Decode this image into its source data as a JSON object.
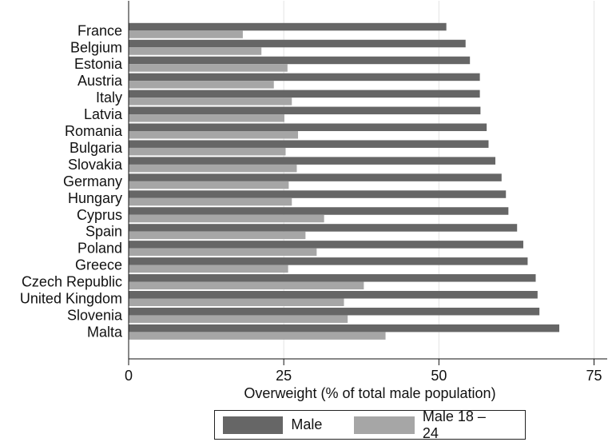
{
  "chart_data": {
    "type": "bar",
    "orientation": "horizontal",
    "categories": [
      "France",
      "Belgium",
      "Estonia",
      "Austria",
      "Italy",
      "Latvia",
      "Romania",
      "Bulgaria",
      "Slovakia",
      "Germany",
      "Hungary",
      "Cyprus",
      "Spain",
      "Poland",
      "Greece",
      "Czech Republic",
      "United Kingdom",
      "Slovenia",
      "Malta"
    ],
    "series": [
      {
        "name": "Male",
        "color": "#666666",
        "values": [
          51.2,
          54.3,
          55.0,
          56.6,
          56.6,
          56.7,
          57.7,
          58.0,
          59.1,
          60.1,
          60.8,
          61.2,
          62.6,
          63.6,
          64.3,
          65.6,
          65.9,
          66.2,
          69.4
        ]
      },
      {
        "name": "Male 18 – 24",
        "color": "#a6a6a6",
        "values": [
          18.4,
          21.4,
          25.6,
          23.4,
          26.3,
          25.1,
          27.3,
          25.3,
          27.1,
          25.8,
          26.3,
          31.5,
          28.5,
          30.3,
          25.7,
          37.9,
          34.7,
          35.3,
          41.4
        ]
      }
    ],
    "xlabel": "Overweight (% of total male population)",
    "xlim": [
      0,
      77
    ],
    "xticks": [
      0,
      25,
      50,
      75
    ],
    "grid": true,
    "legend_position": "bottom"
  }
}
